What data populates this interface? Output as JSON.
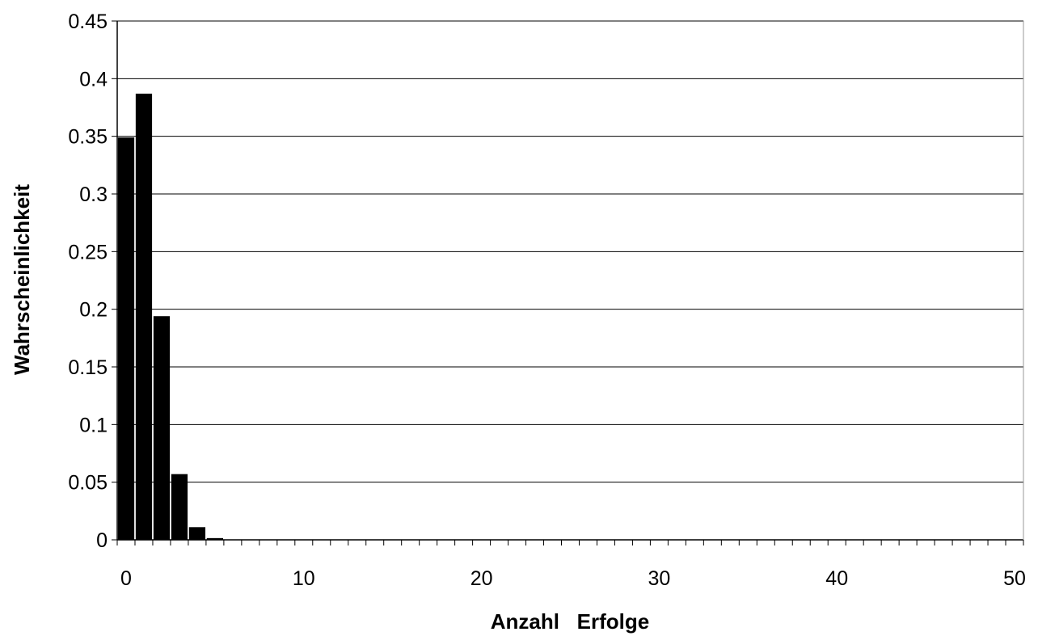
{
  "chart_data": {
    "type": "bar",
    "title": "",
    "xlabel": "Anzahl   Erfolge",
    "ylabel": "Wahrscheinlichkeit",
    "xlim": [
      0,
      50
    ],
    "ylim": [
      0,
      0.45
    ],
    "grid": "horizontal",
    "legend": "none",
    "bar_color": "#000000",
    "x_ticks": [
      {
        "value": 0,
        "label": "0"
      },
      {
        "value": 10,
        "label": "10"
      },
      {
        "value": 20,
        "label": "20"
      },
      {
        "value": 30,
        "label": "30"
      },
      {
        "value": 40,
        "label": "40"
      },
      {
        "value": 50,
        "label": "50"
      }
    ],
    "y_ticks": [
      {
        "value": 0,
        "label": "0"
      },
      {
        "value": 0.05,
        "label": "0.05"
      },
      {
        "value": 0.1,
        "label": "0.1"
      },
      {
        "value": 0.15,
        "label": "0.15"
      },
      {
        "value": 0.2,
        "label": "0.2"
      },
      {
        "value": 0.25,
        "label": "0.25"
      },
      {
        "value": 0.3,
        "label": "0.3"
      },
      {
        "value": 0.35,
        "label": "0.35"
      },
      {
        "value": 0.4,
        "label": "0.4"
      },
      {
        "value": 0.45,
        "label": "0.45"
      }
    ],
    "series": [
      {
        "x": [
          0,
          1,
          2,
          3,
          4,
          5,
          6,
          7,
          8,
          9,
          10,
          11,
          12,
          13,
          14,
          15,
          16,
          17,
          18,
          19,
          20,
          21,
          22,
          23,
          24,
          25,
          26,
          27,
          28,
          29,
          30,
          31,
          32,
          33,
          34,
          35,
          36,
          37,
          38,
          39,
          40,
          41,
          42,
          43,
          44,
          45,
          46,
          47,
          48,
          49,
          50
        ],
        "values": [
          0.349,
          0.387,
          0.194,
          0.057,
          0.011,
          0.0015,
          0.0001,
          0,
          0,
          0,
          0,
          0,
          0,
          0,
          0,
          0,
          0,
          0,
          0,
          0,
          0,
          0,
          0,
          0,
          0,
          0,
          0,
          0,
          0,
          0,
          0,
          0,
          0,
          0,
          0,
          0,
          0,
          0,
          0,
          0,
          0,
          0,
          0,
          0,
          0,
          0,
          0,
          0,
          0,
          0,
          0
        ]
      }
    ]
  }
}
